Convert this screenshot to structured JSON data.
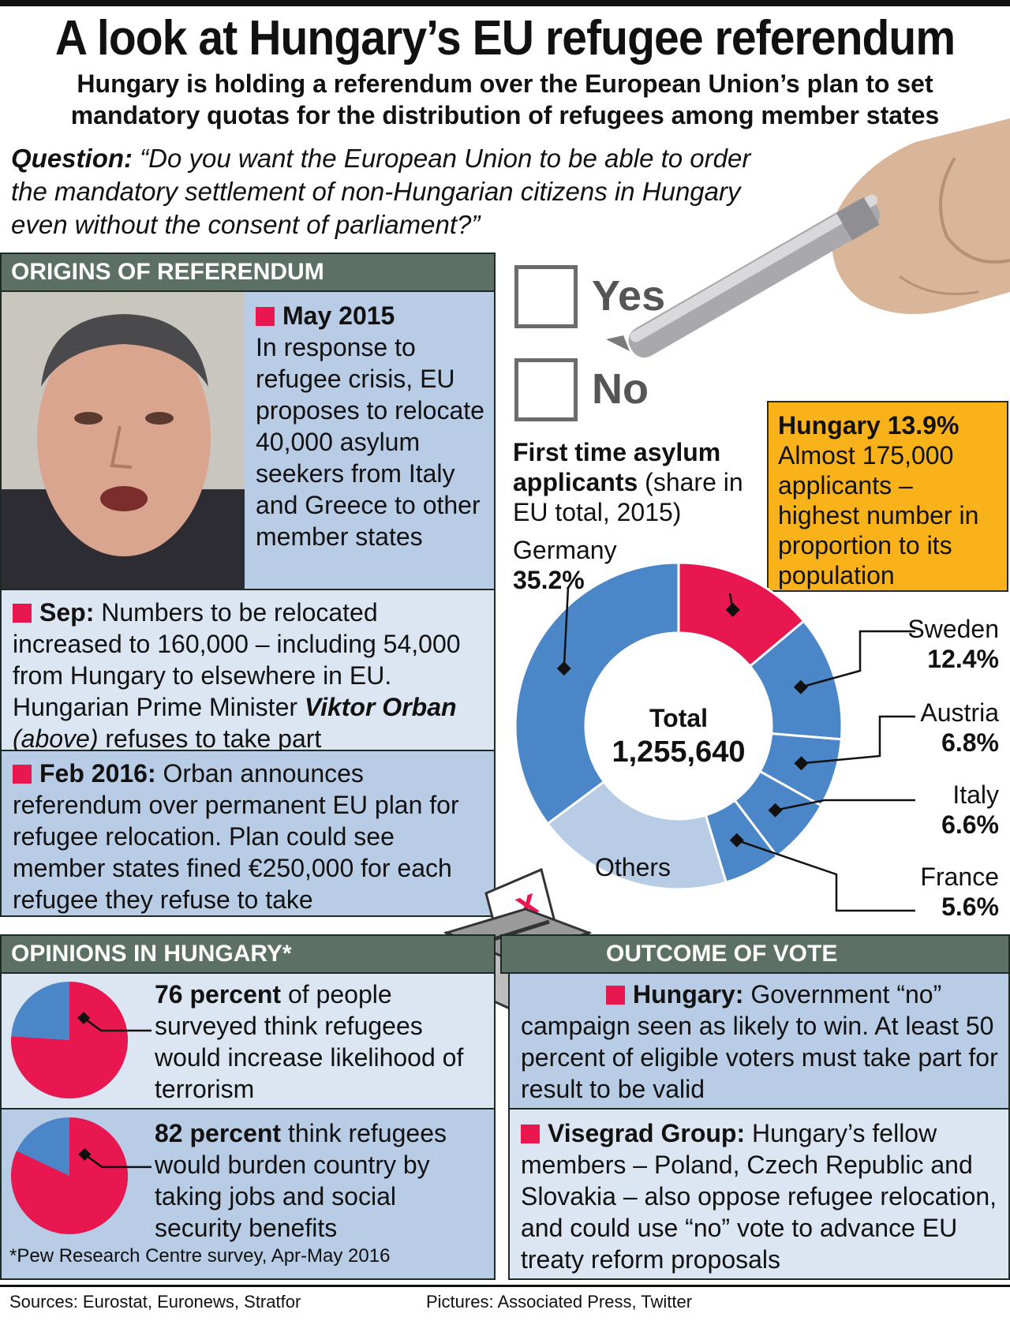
{
  "title": "A look at Hungary’s EU refugee referendum",
  "subtitle": "Hungary is holding a referendum over the European Union’s plan to set mandatory quotas for the distribution of refugees among member states",
  "question": {
    "label": "Question:",
    "text": "“Do you want the European Union to be able to order the mandatory settlement of non-Hungarian citizens in Hungary even without the consent of parliament?”"
  },
  "ballot": {
    "yes": "Yes",
    "no": "No"
  },
  "origins": {
    "heading": "ORIGINS OF REFERENDUM",
    "may_title": "May 2015",
    "may_text": "In response to refugee crisis, EU proposes to relocate 40,000 asylum seekers from Italy and Greece to other member states",
    "sep_title": "Sep:",
    "sep_text_1": "Numbers to be relocated increased to 160,000 – including 54,000 from Hungary to elsewhere in EU. Hungarian Prime Minister",
    "sep_name": "Viktor Orban",
    "sep_above": "(above)",
    "sep_text_2": "refuses to take part",
    "feb_title": "Feb 2016:",
    "feb_text": "Orban announces referendum over permanent EU plan for refugee relocation. Plan could see member states fined €250,000 for each refugee they refuse to take"
  },
  "asylum": {
    "heading_bold": "First time asylum applicants",
    "heading_rest": "(share in EU total, 2015)",
    "total_label": "Total",
    "total_value": "1,255,640",
    "others_label": "Others"
  },
  "callout": {
    "title": "Hungary 13.9%",
    "text": "Almost 175,000 applicants – highest number in proportion to its population"
  },
  "chart_data": {
    "type": "pie",
    "categories": [
      "Hungary",
      "Sweden",
      "Austria",
      "Italy",
      "France",
      "Others",
      "Germany"
    ],
    "values": [
      13.9,
      12.4,
      6.8,
      6.6,
      5.6,
      19.5,
      35.2
    ],
    "value_labels": [
      "13.9%",
      "12.4%",
      "6.8%",
      "6.6%",
      "5.6%",
      "",
      "35.2%"
    ],
    "colors": [
      "#e8174f",
      "#4a86c8",
      "#4a86c8",
      "#4a86c8",
      "#4a86c8",
      "#b8cce6",
      "#4a86c8"
    ]
  },
  "opinions": {
    "heading": "OPINIONS IN HUNGARY*",
    "item1_bold": "76 percent",
    "item1_text": "of people surveyed think refugees would increase likelihood of terrorism",
    "item1_value": 76,
    "item2_bold": "82 percent",
    "item2_text": "think refugees would burden country by taking jobs and social security benefits",
    "item2_value": 82,
    "footnote": "*Pew Research Centre survey, Apr-May 2016"
  },
  "outcome": {
    "heading": "OUTCOME  OF VOTE",
    "item1_title": "Hungary:",
    "item1_text": "Government “no” campaign seen as likely to win. At least 50 percent of eligible voters must take part for result to be valid",
    "item2_title": "Visegrad Group:",
    "item2_text": "Hungary’s fellow members – Poland, Czech Republic and Slovakia – also oppose refugee relocation, and could use “no” vote to advance EU treaty reform proposals"
  },
  "footer": {
    "sources": "Sources: Eurostat, Euronews, Stratfor",
    "pictures": "Pictures: Associated Press, Twitter"
  },
  "colors": {
    "accent": "#e8174f",
    "blue": "#4a86c8",
    "header": "#5c7066",
    "highlight": "#f9b21a"
  }
}
